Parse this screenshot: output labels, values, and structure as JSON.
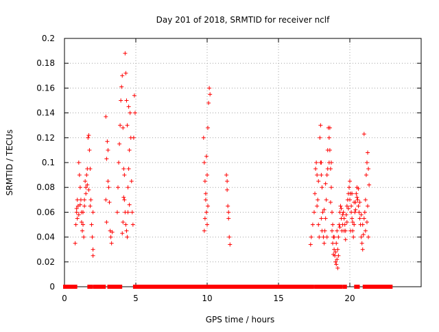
{
  "chart_data": {
    "type": "scatter",
    "title": "Day 201 of 2018, SRMTID for receiver nclf",
    "xlabel": "GPS time / hours",
    "ylabel": "SRMTID / TECUs",
    "xlim": [
      0,
      25
    ],
    "ylim": [
      0,
      0.2
    ],
    "xticks": [
      0,
      5,
      10,
      15,
      20
    ],
    "yticks": [
      0,
      0.02,
      0.04,
      0.06,
      0.08,
      0.1,
      0.12,
      0.14,
      0.16,
      0.18,
      0.2
    ],
    "ytick_labels": [
      "0",
      "0.02",
      "0.04",
      "0.06",
      "0.08",
      "0.1",
      "0.12",
      "0.14",
      "0.16",
      "0.18",
      "0.2"
    ],
    "grid": true,
    "marker": "+",
    "color": "#ff0000",
    "series": [
      {
        "name": "SRMTID",
        "points": [
          [
            0.75,
            0.035
          ],
          [
            0.8,
            0.05
          ],
          [
            0.85,
            0.06
          ],
          [
            0.9,
            0.055
          ],
          [
            0.95,
            0.065
          ],
          [
            1.0,
            0.1
          ],
          [
            1.05,
            0.09
          ],
          [
            1.1,
            0.08
          ],
          [
            1.15,
            0.07
          ],
          [
            1.2,
            0.06
          ],
          [
            1.25,
            0.045
          ],
          [
            1.3,
            0.05
          ],
          [
            1.35,
            0.04
          ],
          [
            1.4,
            0.065
          ],
          [
            1.45,
            0.085
          ],
          [
            1.5,
            0.075
          ],
          [
            1.55,
            0.09
          ],
          [
            1.6,
            0.095
          ],
          [
            1.65,
            0.12
          ],
          [
            1.7,
            0.122
          ],
          [
            1.75,
            0.11
          ],
          [
            1.8,
            0.095
          ],
          [
            1.85,
            0.07
          ],
          [
            1.9,
            0.05
          ],
          [
            1.95,
            0.04
          ],
          [
            2.0,
            0.03
          ],
          [
            0.85,
            0.063
          ],
          [
            0.9,
            0.07
          ],
          [
            1.0,
            0.058
          ],
          [
            1.1,
            0.066
          ],
          [
            1.2,
            0.052
          ],
          [
            1.3,
            0.06
          ],
          [
            1.4,
            0.07
          ],
          [
            1.5,
            0.08
          ],
          [
            1.6,
            0.082
          ],
          [
            1.7,
            0.078
          ],
          [
            1.8,
            0.065
          ],
          [
            2.0,
            0.025
          ],
          [
            2.0,
            0.06
          ],
          [
            2.9,
            0.07
          ],
          [
            2.95,
            0.103
          ],
          [
            3.0,
            0.117
          ],
          [
            3.05,
            0.11
          ],
          [
            3.1,
            0.08
          ],
          [
            3.15,
            0.068
          ],
          [
            3.2,
            0.045
          ],
          [
            3.25,
            0.04
          ],
          [
            3.3,
            0.035
          ],
          [
            3.35,
            0.044
          ],
          [
            2.9,
            0.137
          ],
          [
            2.95,
            0.052
          ],
          [
            3.05,
            0.085
          ],
          [
            3.7,
            0.06
          ],
          [
            3.75,
            0.08
          ],
          [
            3.8,
            0.1
          ],
          [
            3.85,
            0.115
          ],
          [
            3.9,
            0.13
          ],
          [
            3.95,
            0.15
          ],
          [
            4.0,
            0.161
          ],
          [
            4.05,
            0.17
          ],
          [
            4.1,
            0.128
          ],
          [
            4.15,
            0.095
          ],
          [
            4.2,
            0.07
          ],
          [
            4.25,
            0.06
          ],
          [
            4.3,
            0.05
          ],
          [
            4.35,
            0.045
          ],
          [
            4.4,
            0.04
          ],
          [
            4.45,
            0.06
          ],
          [
            4.5,
            0.095
          ],
          [
            4.55,
            0.11
          ],
          [
            4.6,
            0.14
          ],
          [
            4.65,
            0.12
          ],
          [
            4.7,
            0.085
          ],
          [
            4.75,
            0.06
          ],
          [
            4.8,
            0.05
          ],
          [
            4.85,
            0.12
          ],
          [
            4.9,
            0.154
          ],
          [
            4.95,
            0.14
          ],
          [
            4.25,
            0.188
          ],
          [
            4.3,
            0.172
          ],
          [
            4.35,
            0.15
          ],
          [
            4.4,
            0.13
          ],
          [
            4.45,
            0.08
          ],
          [
            4.5,
            0.145
          ],
          [
            4.55,
            0.066
          ],
          [
            4.2,
            0.09
          ],
          [
            4.15,
            0.072
          ],
          [
            4.1,
            0.052
          ],
          [
            4.05,
            0.043
          ],
          [
            9.75,
            0.12
          ],
          [
            9.8,
            0.1
          ],
          [
            9.85,
            0.085
          ],
          [
            9.9,
            0.07
          ],
          [
            9.95,
            0.06
          ],
          [
            10.0,
            0.05
          ],
          [
            10.05,
            0.128
          ],
          [
            10.1,
            0.148
          ],
          [
            10.15,
            0.16
          ],
          [
            10.2,
            0.155
          ],
          [
            9.8,
            0.045
          ],
          [
            9.85,
            0.055
          ],
          [
            9.9,
            0.075
          ],
          [
            9.95,
            0.105
          ],
          [
            10.0,
            0.09
          ],
          [
            10.05,
            0.065
          ],
          [
            11.35,
            0.09
          ],
          [
            11.4,
            0.078
          ],
          [
            11.45,
            0.065
          ],
          [
            11.5,
            0.055
          ],
          [
            11.55,
            0.04
          ],
          [
            11.6,
            0.034
          ],
          [
            11.4,
            0.085
          ],
          [
            11.5,
            0.06
          ],
          [
            17.25,
            0.034
          ],
          [
            17.3,
            0.04
          ],
          [
            17.4,
            0.05
          ],
          [
            17.5,
            0.06
          ],
          [
            17.55,
            0.075
          ],
          [
            17.6,
            0.095
          ],
          [
            17.65,
            0.1
          ],
          [
            17.7,
            0.09
          ],
          [
            17.75,
            0.07
          ],
          [
            17.8,
            0.05
          ],
          [
            17.85,
            0.04
          ],
          [
            17.9,
            0.12
          ],
          [
            17.95,
            0.13
          ],
          [
            18.0,
            0.1
          ],
          [
            18.05,
            0.08
          ],
          [
            18.1,
            0.06
          ],
          [
            18.15,
            0.04
          ],
          [
            18.2,
            0.035
          ],
          [
            18.25,
            0.045
          ],
          [
            18.3,
            0.055
          ],
          [
            18.35,
            0.07
          ],
          [
            18.4,
            0.09
          ],
          [
            18.45,
            0.11
          ],
          [
            18.5,
            0.128
          ],
          [
            18.55,
            0.12
          ],
          [
            18.6,
            0.11
          ],
          [
            18.65,
            0.095
          ],
          [
            18.7,
            0.08
          ],
          [
            18.75,
            0.06
          ],
          [
            18.8,
            0.05
          ],
          [
            18.85,
            0.04
          ],
          [
            18.9,
            0.03
          ],
          [
            18.95,
            0.025
          ],
          [
            19.0,
            0.02
          ],
          [
            19.05,
            0.018
          ],
          [
            19.1,
            0.022
          ],
          [
            19.15,
            0.03
          ],
          [
            19.2,
            0.04
          ],
          [
            19.25,
            0.05
          ],
          [
            19.3,
            0.06
          ],
          [
            19.35,
            0.065
          ],
          [
            19.4,
            0.055
          ],
          [
            19.45,
            0.045
          ],
          [
            19.5,
            0.05
          ],
          [
            19.55,
            0.06
          ],
          [
            19.6,
            0.055
          ],
          [
            19.65,
            0.05
          ],
          [
            19.7,
            0.045
          ],
          [
            19.75,
            0.058
          ],
          [
            19.8,
            0.065
          ],
          [
            19.85,
            0.07
          ],
          [
            19.9,
            0.075
          ],
          [
            19.95,
            0.08
          ],
          [
            20.0,
            0.085
          ],
          [
            20.05,
            0.075
          ],
          [
            20.1,
            0.065
          ],
          [
            20.15,
            0.055
          ],
          [
            20.2,
            0.045
          ],
          [
            20.25,
            0.04
          ],
          [
            20.3,
            0.05
          ],
          [
            20.35,
            0.06
          ],
          [
            20.4,
            0.068
          ],
          [
            20.45,
            0.075
          ],
          [
            20.5,
            0.08
          ],
          [
            20.55,
            0.07
          ],
          [
            20.6,
            0.065
          ],
          [
            20.65,
            0.06
          ],
          [
            20.7,
            0.055
          ],
          [
            20.75,
            0.05
          ],
          [
            20.8,
            0.04
          ],
          [
            20.85,
            0.035
          ],
          [
            20.9,
            0.03
          ],
          [
            20.95,
            0.042
          ],
          [
            21.0,
            0.055
          ],
          [
            21.05,
            0.06
          ],
          [
            21.1,
            0.07
          ],
          [
            21.15,
            0.09
          ],
          [
            21.2,
            0.1
          ],
          [
            21.25,
            0.108
          ],
          [
            21.3,
            0.095
          ],
          [
            21.35,
            0.082
          ],
          [
            17.95,
            0.1
          ],
          [
            18.0,
            0.055
          ],
          [
            18.05,
            0.045
          ],
          [
            18.2,
            0.062
          ],
          [
            18.3,
            0.083
          ],
          [
            18.4,
            0.04
          ],
          [
            18.45,
            0.095
          ],
          [
            18.6,
            0.128
          ],
          [
            18.65,
            0.068
          ],
          [
            18.75,
            0.045
          ],
          [
            18.8,
            0.035
          ],
          [
            18.9,
            0.04
          ],
          [
            19.0,
            0.028
          ],
          [
            19.05,
            0.035
          ],
          [
            19.1,
            0.045
          ],
          [
            19.2,
            0.025
          ],
          [
            19.3,
            0.048
          ],
          [
            19.4,
            0.063
          ],
          [
            19.5,
            0.058
          ],
          [
            19.6,
            0.045
          ],
          [
            19.7,
            0.038
          ],
          [
            19.8,
            0.052
          ],
          [
            19.9,
            0.063
          ],
          [
            20.0,
            0.07
          ],
          [
            20.1,
            0.06
          ],
          [
            20.2,
            0.052
          ],
          [
            20.3,
            0.068
          ],
          [
            20.4,
            0.062
          ],
          [
            20.5,
            0.072
          ],
          [
            20.6,
            0.079
          ],
          [
            20.7,
            0.068
          ],
          [
            20.8,
            0.058
          ],
          [
            20.9,
            0.05
          ],
          [
            21.0,
            0.123
          ],
          [
            21.1,
            0.045
          ],
          [
            21.2,
            0.052
          ],
          [
            21.25,
            0.065
          ],
          [
            21.3,
            0.04
          ],
          [
            17.7,
            0.065
          ],
          [
            17.8,
            0.085
          ],
          [
            18.0,
            0.09
          ],
          [
            18.55,
            0.1
          ],
          [
            18.7,
            0.1
          ],
          [
            18.85,
            0.026
          ],
          [
            19.15,
            0.015
          ],
          [
            20.05,
            0.045
          ],
          [
            20.15,
            0.075
          ]
        ]
      },
      {
        "name": "zero-level markers",
        "y": 0,
        "x_ranges": [
          [
            0.0,
            0.8
          ],
          [
            1.7,
            1.9
          ],
          [
            2.1,
            2.8
          ],
          [
            3.1,
            3.8
          ],
          [
            3.9,
            3.95
          ],
          [
            4.9,
            9.9
          ],
          [
            10.05,
            11.2
          ],
          [
            11.3,
            17.4
          ],
          [
            17.6,
            18.1
          ],
          [
            18.2,
            19.4
          ],
          [
            19.6,
            19.7
          ],
          [
            20.4,
            20.6
          ],
          [
            21.0,
            22.9
          ]
        ]
      }
    ]
  }
}
